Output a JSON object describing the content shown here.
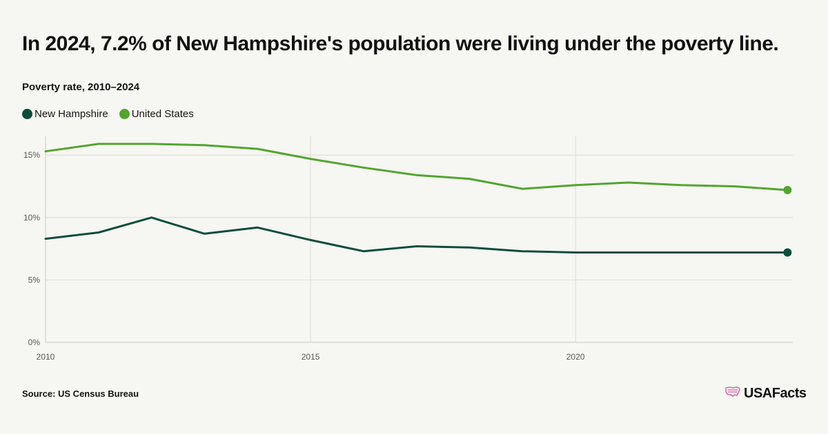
{
  "header": {
    "title": "In 2024, 7.2% of New Hampshire's population were living under the poverty line.",
    "subtitle": "Poverty rate, 2010–2024"
  },
  "legend": [
    {
      "label": "New Hampshire",
      "color": "#0d4d3c"
    },
    {
      "label": "United States",
      "color": "#52a52e"
    }
  ],
  "footer": {
    "source": "Source: US Census Bureau",
    "logo_text": "USAFacts",
    "logo_icon": "us-map-flag-icon",
    "logo_color": "#e0569e"
  },
  "chart_data": {
    "type": "line",
    "title": "Poverty rate, 2010–2024",
    "xlabel": "",
    "ylabel": "",
    "x": [
      2010,
      2011,
      2012,
      2013,
      2014,
      2015,
      2016,
      2017,
      2018,
      2019,
      2020,
      2021,
      2022,
      2023,
      2024
    ],
    "xlim": [
      2010,
      2024.1
    ],
    "ylim": [
      0,
      16.5
    ],
    "xticks": [
      2010,
      2015,
      2020
    ],
    "xtick_labels": [
      "2010",
      "2015",
      "2020"
    ],
    "yticks": [
      0,
      5,
      10,
      15
    ],
    "ytick_labels": [
      "0%",
      "5%",
      "10%",
      "15%"
    ],
    "grid": true,
    "legend_position": "top-left",
    "series": [
      {
        "name": "New Hampshire",
        "color": "#0d4d3c",
        "values": [
          8.3,
          8.8,
          10.0,
          8.7,
          9.2,
          8.2,
          7.3,
          7.7,
          7.6,
          7.3,
          7.2,
          7.2,
          7.2,
          7.2,
          7.2
        ]
      },
      {
        "name": "United States",
        "color": "#52a52e",
        "values": [
          15.3,
          15.9,
          15.9,
          15.8,
          15.5,
          14.7,
          14.0,
          13.4,
          13.1,
          12.3,
          12.6,
          12.8,
          12.6,
          12.5,
          12.2
        ]
      }
    ]
  }
}
